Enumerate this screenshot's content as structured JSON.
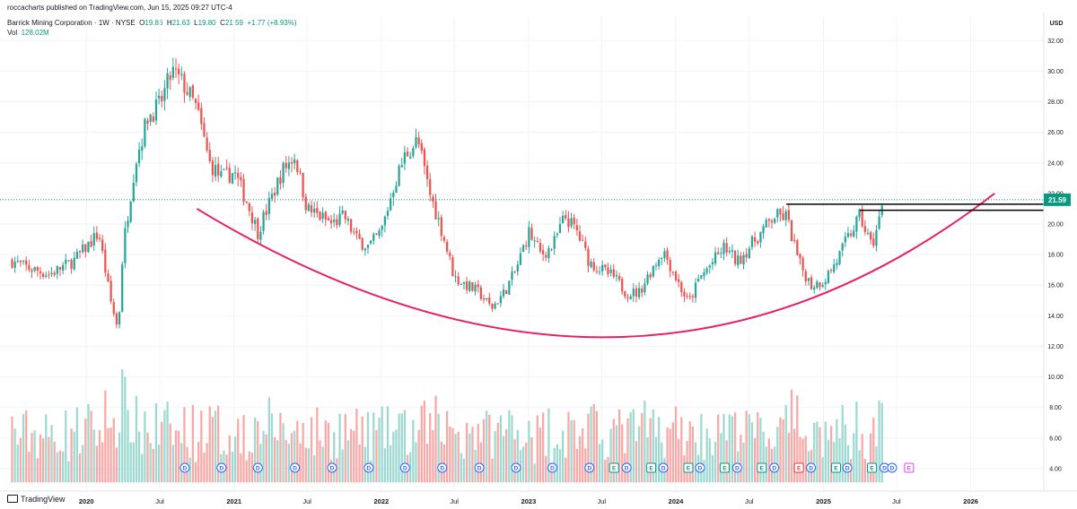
{
  "header": {
    "published_line": "roccacharts published on TradingView.com, Jun 15, 2025 09:27 UTC-4",
    "symbol": "Barrick Mining Corporation · 1W · NYSE",
    "open_label": "O",
    "open": "19.86",
    "high_label": "H",
    "high": "21.63",
    "low_label": "L",
    "low": "19.80",
    "close_label": "C",
    "close": "21.59",
    "change": "+1.77 (+8.93%)",
    "volume_label": "Vol",
    "volume": "128.02M"
  },
  "branding": {
    "logo_text": "TradingView"
  },
  "colors": {
    "up": "#26a69a",
    "down": "#ef5350",
    "up_volume": "#9ed9d1",
    "down_volume": "#f7a9a7",
    "curve": "#e91e63",
    "resistance": "#000000",
    "last_price": "#089981",
    "dividend": "#2962ff",
    "earnings": "#089981",
    "earnings_miss": "#e53935",
    "earnings_future": "#e040fb"
  },
  "chart_data": {
    "type": "candlestick",
    "title": "",
    "currency": "USD",
    "y_ticks": [
      "4.00",
      "6.00",
      "8.00",
      "10.00",
      "12.00",
      "14.00",
      "16.00",
      "18.00",
      "20.00",
      "22.00",
      "24.00",
      "26.00",
      "28.00",
      "30.00",
      "32.00"
    ],
    "ylim": [
      3.0,
      33.6
    ],
    "x_ticks": [
      "2020",
      "Jul",
      "2021",
      "Jul",
      "2022",
      "Jul",
      "2023",
      "Jul",
      "2024",
      "Jul",
      "2025",
      "Jul",
      "2026"
    ],
    "x_tick_dates": [
      "2020-01",
      "2020-07",
      "2021-01",
      "2021-07",
      "2022-01",
      "2022-07",
      "2023-01",
      "2023-07",
      "2024-01",
      "2024-07",
      "2025-01",
      "2025-07",
      "2026-01"
    ],
    "xlim": [
      "2019-06",
      "2026-07"
    ],
    "last_price": 21.59,
    "price_anchors": [
      [
        "2019-07",
        17.6
      ],
      [
        "2019-08",
        17.2
      ],
      [
        "2019-10",
        16.7
      ],
      [
        "2019-12",
        17.6
      ],
      [
        "2020-02",
        19.4
      ],
      [
        "2020-03",
        15.0
      ],
      [
        "2020-03-20",
        13.0
      ],
      [
        "2020-04",
        18.5
      ],
      [
        "2020-05",
        24.0
      ],
      [
        "2020-06",
        27.0
      ],
      [
        "2020-07",
        27.8
      ],
      [
        "2020-08",
        30.0
      ],
      [
        "2020-09",
        29.0
      ],
      [
        "2020-10",
        27.5
      ],
      [
        "2020-11",
        24.0
      ],
      [
        "2020-12",
        23.0
      ],
      [
        "2021-01",
        23.4
      ],
      [
        "2021-02",
        21.5
      ],
      [
        "2021-03",
        19.5
      ],
      [
        "2021-04",
        21.5
      ],
      [
        "2021-05",
        23.5
      ],
      [
        "2021-06",
        24.5
      ],
      [
        "2021-07",
        21.0
      ],
      [
        "2021-08",
        20.5
      ],
      [
        "2021-09",
        20.0
      ],
      [
        "2021-10",
        20.5
      ],
      [
        "2021-11",
        19.0
      ],
      [
        "2021-12",
        18.5
      ],
      [
        "2022-01",
        19.5
      ],
      [
        "2022-02",
        22.5
      ],
      [
        "2022-03",
        24.5
      ],
      [
        "2022-04",
        25.5
      ],
      [
        "2022-05",
        22.0
      ],
      [
        "2022-06",
        19.5
      ],
      [
        "2022-07",
        16.5
      ],
      [
        "2022-08",
        16.0
      ],
      [
        "2022-09",
        15.5
      ],
      [
        "2022-10",
        14.5
      ],
      [
        "2022-11",
        15.5
      ],
      [
        "2022-12",
        17.0
      ],
      [
        "2023-01",
        19.5
      ],
      [
        "2023-02",
        18.0
      ],
      [
        "2023-03",
        18.5
      ],
      [
        "2023-04",
        20.5
      ],
      [
        "2023-05",
        19.5
      ],
      [
        "2023-06",
        17.5
      ],
      [
        "2023-07",
        17.0
      ],
      [
        "2023-08",
        16.5
      ],
      [
        "2023-09",
        15.5
      ],
      [
        "2023-10",
        15.5
      ],
      [
        "2023-11",
        17.0
      ],
      [
        "2023-12",
        18.3
      ],
      [
        "2024-01",
        16.5
      ],
      [
        "2024-02",
        14.8
      ],
      [
        "2024-03",
        16.5
      ],
      [
        "2024-04",
        17.5
      ],
      [
        "2024-05",
        18.5
      ],
      [
        "2024-06",
        17.5
      ],
      [
        "2024-07",
        18.5
      ],
      [
        "2024-08",
        19.5
      ],
      [
        "2024-09",
        20.5
      ],
      [
        "2024-10",
        20.5
      ],
      [
        "2024-11",
        17.5
      ],
      [
        "2024-12",
        16.0
      ],
      [
        "2025-01",
        16.3
      ],
      [
        "2025-02",
        17.5
      ],
      [
        "2025-03",
        19.0
      ],
      [
        "2025-04",
        20.5
      ],
      [
        "2025-05",
        18.5
      ],
      [
        "2025-06",
        21.59
      ]
    ],
    "volume_axis_note": "volume bars scaled to lower quarter of pane",
    "bowl_curve": {
      "start": [
        "2020-10",
        21.0
      ],
      "bottom": [
        "2023-08",
        12.6
      ],
      "end": [
        "2026-03",
        22.0
      ]
    },
    "resistance_lines": [
      {
        "from": "2024-10",
        "level": 21.3
      },
      {
        "from": "2025-04",
        "level": 20.9
      }
    ],
    "event_markers": [
      {
        "date": "2020-09",
        "label": "D",
        "kind": "dividend"
      },
      {
        "date": "2020-12",
        "label": "D",
        "kind": "dividend"
      },
      {
        "date": "2021-03",
        "label": "D",
        "kind": "dividend"
      },
      {
        "date": "2021-06",
        "label": "D",
        "kind": "dividend"
      },
      {
        "date": "2021-09",
        "label": "D",
        "kind": "dividend"
      },
      {
        "date": "2021-12",
        "label": "D",
        "kind": "dividend"
      },
      {
        "date": "2022-03",
        "label": "D",
        "kind": "dividend"
      },
      {
        "date": "2022-06",
        "label": "D",
        "kind": "dividend"
      },
      {
        "date": "2022-09",
        "label": "D",
        "kind": "dividend"
      },
      {
        "date": "2022-12",
        "label": "D",
        "kind": "dividend"
      },
      {
        "date": "2023-03",
        "label": "D",
        "kind": "dividend"
      },
      {
        "date": "2023-06",
        "label": "D",
        "kind": "dividend"
      },
      {
        "date": "2023-08",
        "label": "E",
        "kind": "earnings"
      },
      {
        "date": "2023-09",
        "label": "D",
        "kind": "dividend"
      },
      {
        "date": "2023-11",
        "label": "E",
        "kind": "earnings"
      },
      {
        "date": "2023-12",
        "label": "D",
        "kind": "dividend"
      },
      {
        "date": "2024-02",
        "label": "E",
        "kind": "earnings"
      },
      {
        "date": "2024-03",
        "label": "D",
        "kind": "dividend"
      },
      {
        "date": "2024-05",
        "label": "E",
        "kind": "earnings"
      },
      {
        "date": "2024-06",
        "label": "D",
        "kind": "dividend"
      },
      {
        "date": "2024-08",
        "label": "E",
        "kind": "earnings"
      },
      {
        "date": "2024-09",
        "label": "D",
        "kind": "dividend"
      },
      {
        "date": "2024-11",
        "label": "E",
        "kind": "earnings_miss"
      },
      {
        "date": "2024-12",
        "label": "D",
        "kind": "dividend"
      },
      {
        "date": "2025-02",
        "label": "E",
        "kind": "earnings"
      },
      {
        "date": "2025-03",
        "label": "D",
        "kind": "dividend"
      },
      {
        "date": "2025-05",
        "label": "E",
        "kind": "earnings"
      },
      {
        "date": "2025-06",
        "label": "D",
        "kind": "dividend"
      },
      {
        "date": "2025-06-20",
        "label": "D",
        "kind": "dividend_future"
      },
      {
        "date": "2025-08",
        "label": "E",
        "kind": "earnings_future"
      }
    ]
  }
}
